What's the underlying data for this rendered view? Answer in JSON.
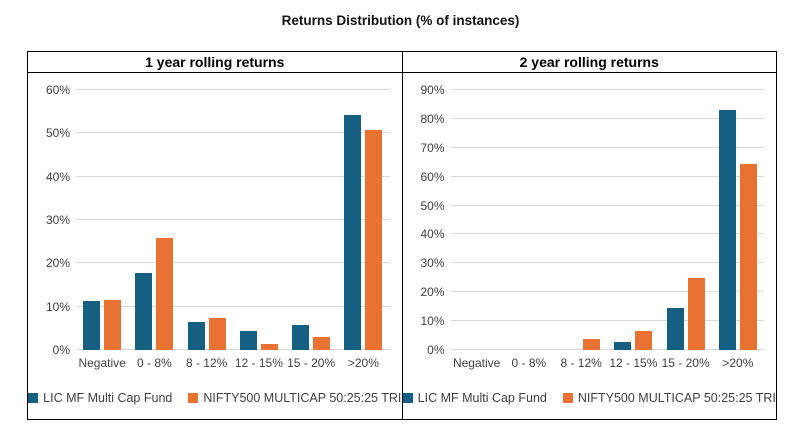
{
  "title": "Returns Distribution (% of instances)",
  "colors": {
    "series1": "#156082",
    "series2": "#E97132",
    "gridline": "#d9d9d9",
    "border": "#000000",
    "text": "#404040"
  },
  "chart_data": [
    {
      "type": "bar",
      "title": "1 year rolling returns",
      "categories": [
        "Negative",
        "0 - 8%",
        "8 - 12%",
        "12 - 15%",
        "15 - 20%",
        ">20%"
      ],
      "series": [
        {
          "name": "LIC MF Multi Cap Fund",
          "color": "#156082",
          "values": [
            11.3,
            17.8,
            6.5,
            4.4,
            5.8,
            54.3
          ]
        },
        {
          "name": "NIFTY500 MULTICAP 50:25:25 TRI",
          "color": "#E97132",
          "values": [
            11.6,
            25.8,
            7.4,
            1.5,
            3.0,
            50.8
          ]
        }
      ],
      "xlabel": "",
      "ylabel": "",
      "ylim": [
        0,
        60
      ],
      "ytick_step": 10,
      "ytick_labels": [
        "0%",
        "10%",
        "20%",
        "30%",
        "40%",
        "50%",
        "60%"
      ],
      "grid": true,
      "legend_position": "bottom"
    },
    {
      "type": "bar",
      "title": "2 year rolling returns",
      "categories": [
        "Negative",
        "0 - 8%",
        "8 - 12%",
        "12 - 15%",
        "15 - 20%",
        ">20%"
      ],
      "series": [
        {
          "name": "LIC MF Multi Cap Fund",
          "color": "#156082",
          "values": [
            0,
            0,
            0,
            2.8,
            14.6,
            83.0
          ]
        },
        {
          "name": "NIFTY500 MULTICAP 50:25:25 TRI",
          "color": "#E97132",
          "values": [
            0,
            0,
            3.9,
            6.5,
            25.1,
            64.4
          ]
        }
      ],
      "xlabel": "",
      "ylabel": "",
      "ylim": [
        0,
        90
      ],
      "ytick_step": 10,
      "ytick_labels": [
        "0%",
        "10%",
        "20%",
        "30%",
        "40%",
        "50%",
        "60%",
        "70%",
        "80%",
        "90%"
      ],
      "grid": true,
      "legend_position": "bottom"
    }
  ]
}
